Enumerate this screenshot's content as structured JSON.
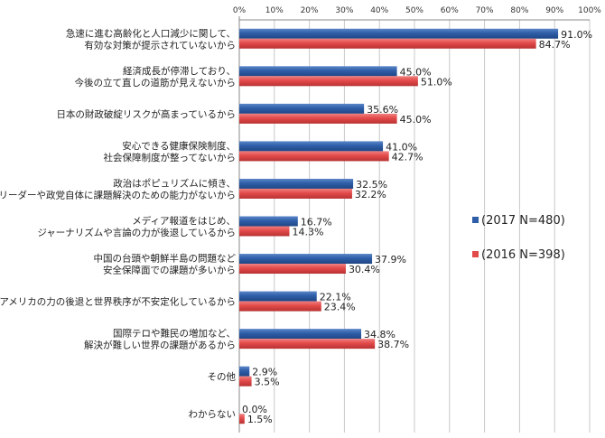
{
  "chart_data": {
    "type": "bar",
    "orientation": "horizontal",
    "title": "",
    "xlabel": "",
    "ylabel": "",
    "xlim": [
      0,
      100
    ],
    "x_tick_labels": [
      "0%",
      "10%",
      "20%",
      "30%",
      "40%",
      "50%",
      "60%",
      "70%",
      "80%",
      "90%",
      "100%"
    ],
    "grid": true,
    "legend_position": "right",
    "categories": [
      [
        "急速に進む高齢化と人口減少に関して、",
        "有効な対策が提示されていないから"
      ],
      [
        "経済成長が停滞しており、",
        "今後の立て直しの道筋が見えないから"
      ],
      [
        "日本の財政破綻リスクが高まっているから"
      ],
      [
        "安心できる健康保険制度、",
        "社会保障制度が整ってないから"
      ],
      [
        "政治はポピュリズムに傾き、",
        "政治リーダーや政党自体に課題解決のための能力がないから"
      ],
      [
        "メディア報道をはじめ、",
        "ジャーナリズムや言論の力が後退しているから"
      ],
      [
        "中国の台頭や朝鮮半島の問題など",
        "安全保障面での課題が多いから"
      ],
      [
        "アメリカの力の後退と世界秩序が不安定化しているから"
      ],
      [
        "国際テロや難民の増加など、",
        "解決が難しい世界の課題があるから"
      ],
      [
        "その他"
      ],
      [
        "わからない"
      ]
    ],
    "series": [
      {
        "name": "(2017 N=480)",
        "color": "#2e5ea8",
        "values": [
          91.0,
          45.0,
          35.6,
          41.0,
          32.5,
          16.7,
          37.9,
          22.1,
          34.8,
          2.9,
          0.0
        ],
        "labels": [
          "91.0%",
          "45.0%",
          "35.6%",
          "41.0%",
          "32.5%",
          "16.7%",
          "37.9%",
          "22.1%",
          "34.8%",
          "2.9%",
          "0.0%"
        ]
      },
      {
        "name": "(2016 N=398)",
        "color": "#e34a4a",
        "values": [
          84.7,
          51.0,
          45.0,
          42.7,
          32.2,
          14.3,
          30.4,
          23.4,
          38.7,
          3.5,
          1.5
        ],
        "labels": [
          "84.7%",
          "51.0%",
          "45.0%",
          "42.7%",
          "32.2%",
          "14.3%",
          "30.4%",
          "23.4%",
          "38.7%",
          "3.5%",
          "1.5%"
        ]
      }
    ]
  }
}
